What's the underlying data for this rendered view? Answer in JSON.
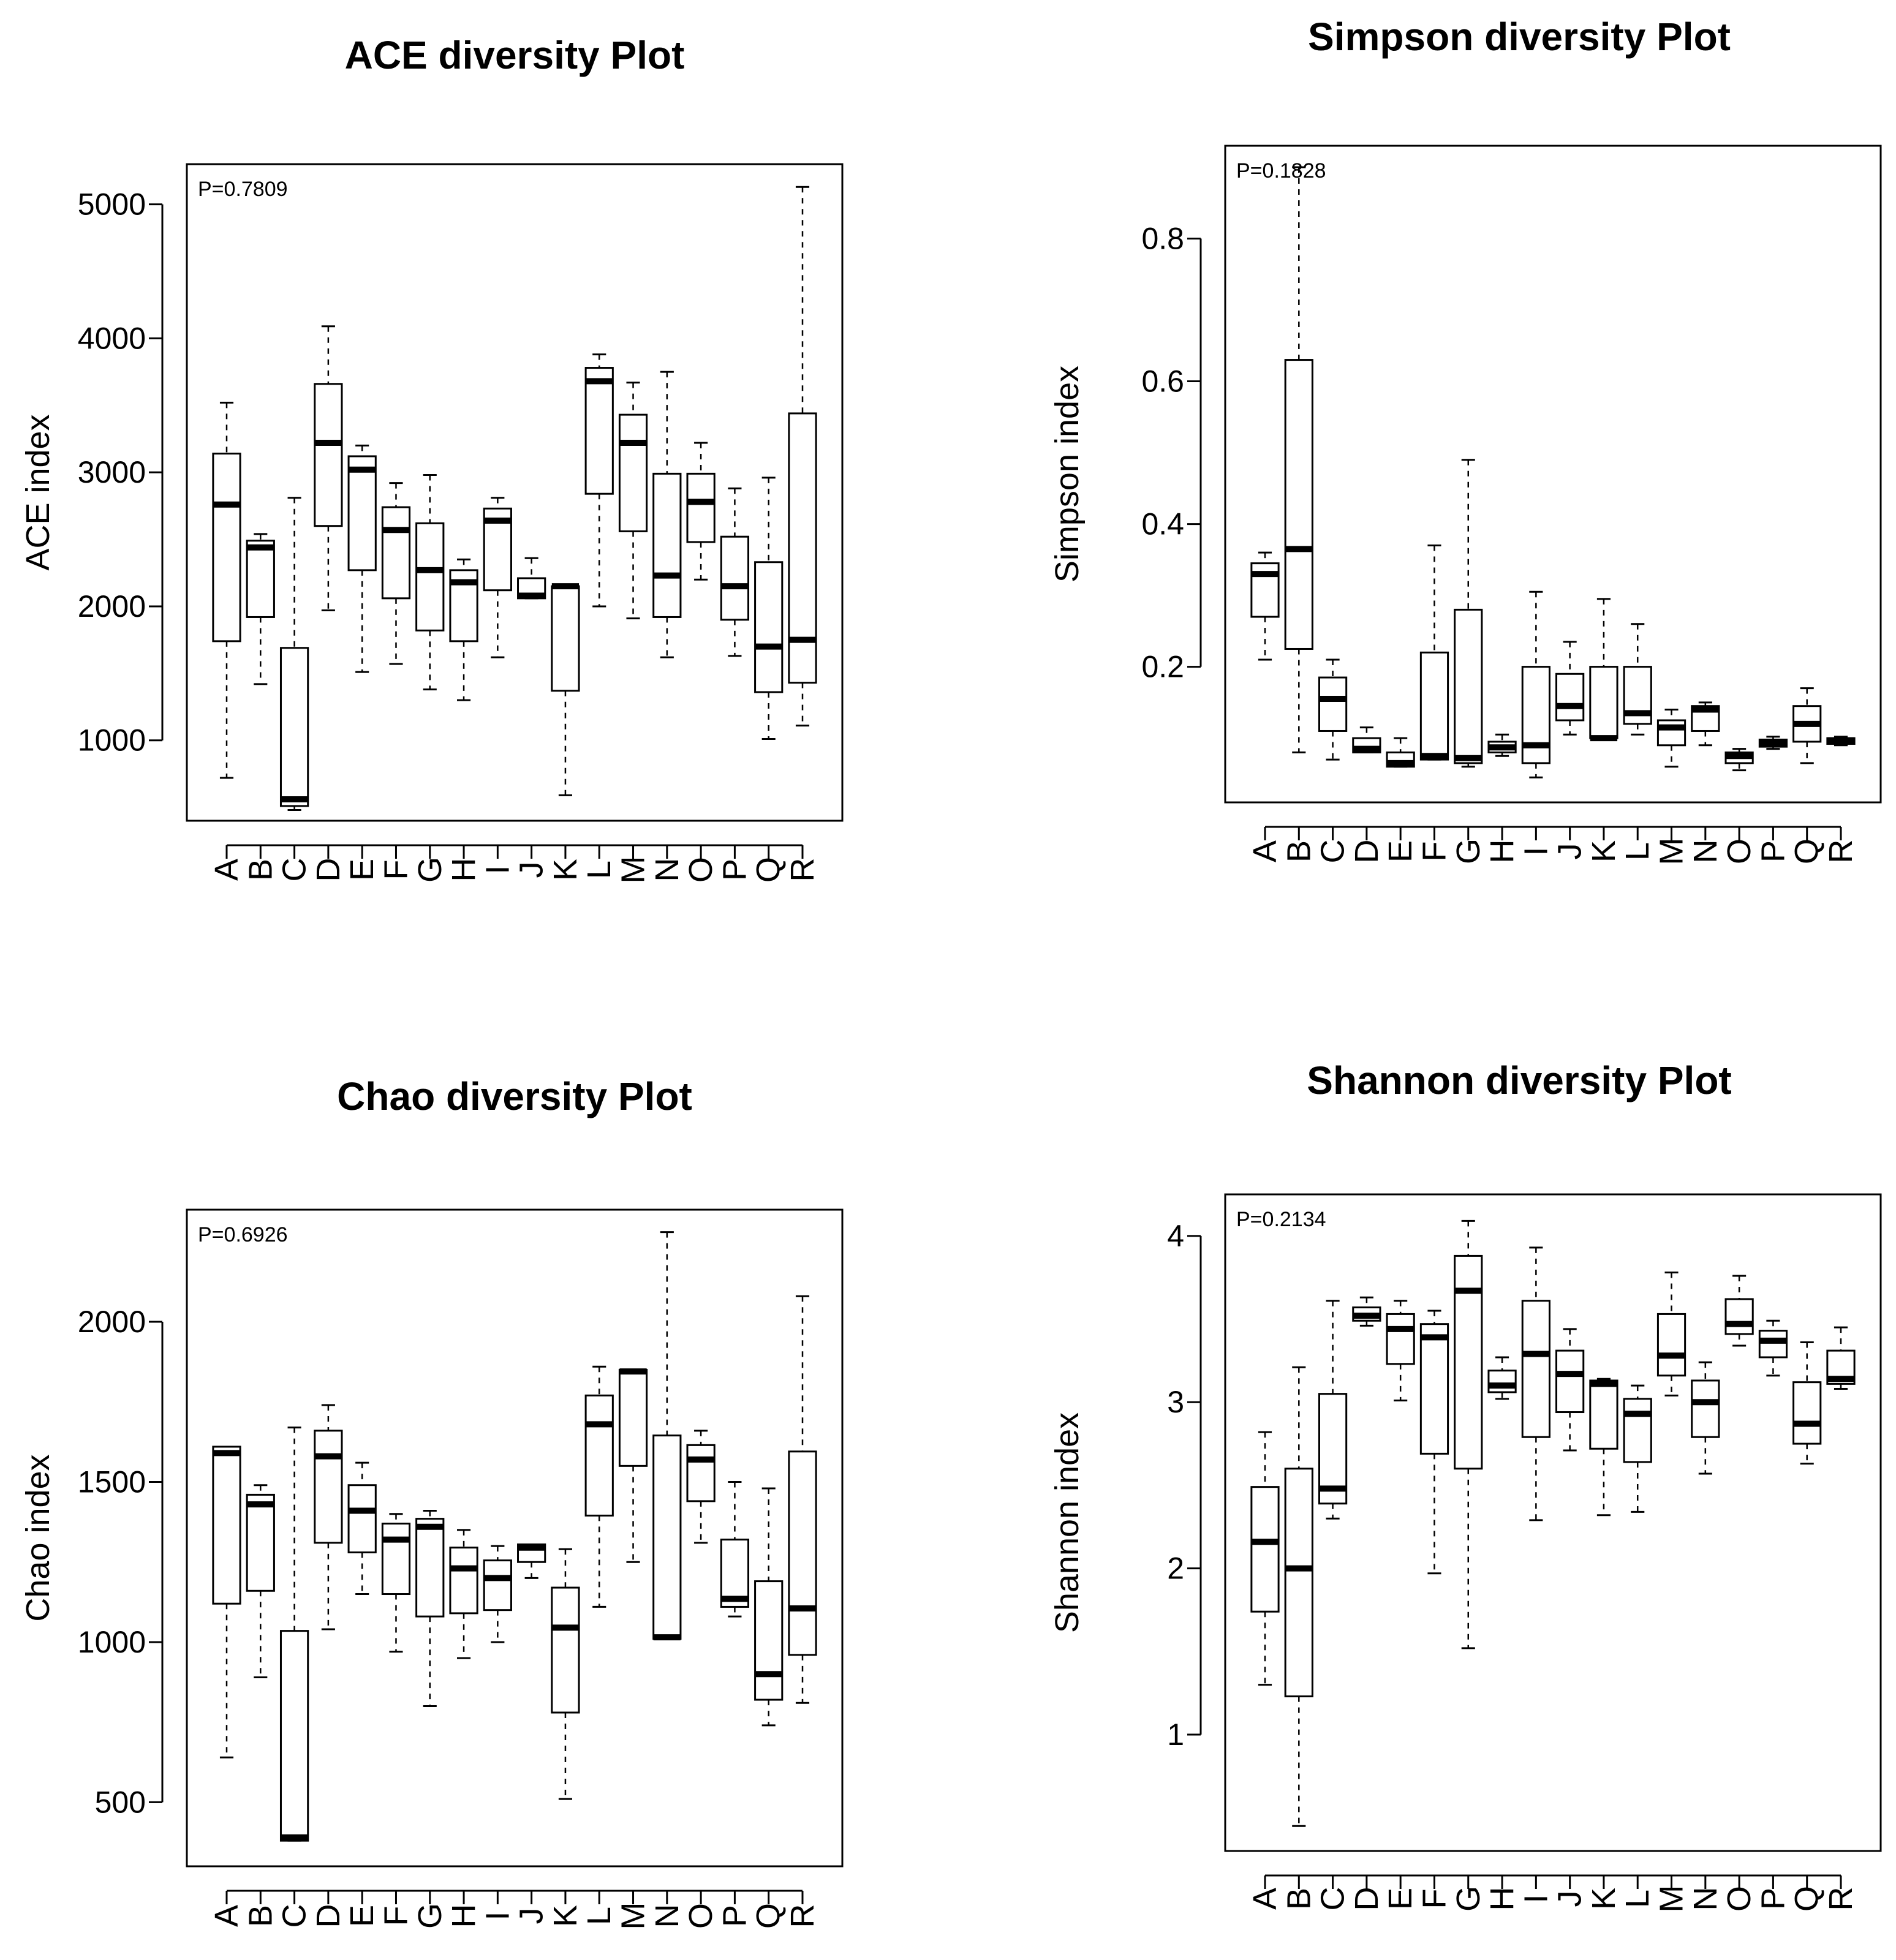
{
  "chart_data": [
    {
      "type": "boxplot",
      "title": "ACE diversity Plot",
      "ylabel": "ACE index",
      "annotation": "P=0.7809",
      "ylim": [
        400,
        5300
      ],
      "yticks": [
        1000,
        2000,
        3000,
        4000,
        5000
      ],
      "categories": [
        "A",
        "B",
        "C",
        "D",
        "E",
        "F",
        "G",
        "H",
        "I",
        "J",
        "K",
        "L",
        "M",
        "N",
        "O",
        "P",
        "Q",
        "R"
      ],
      "boxes": [
        {
          "min": 720,
          "q1": 1740,
          "median": 2760,
          "q3": 3140,
          "max": 3520
        },
        {
          "min": 1420,
          "q1": 1920,
          "median": 2440,
          "q3": 2490,
          "max": 2540
        },
        {
          "min": 480,
          "q1": 510,
          "median": 560,
          "q3": 1690,
          "max": 2810
        },
        {
          "min": 1970,
          "q1": 2600,
          "median": 3220,
          "q3": 3660,
          "max": 4090
        },
        {
          "min": 1510,
          "q1": 2270,
          "median": 3020,
          "q3": 3120,
          "max": 3200
        },
        {
          "min": 1570,
          "q1": 2060,
          "median": 2570,
          "q3": 2740,
          "max": 2920
        },
        {
          "min": 1380,
          "q1": 1820,
          "median": 2270,
          "q3": 2620,
          "max": 2980
        },
        {
          "min": 1300,
          "q1": 1740,
          "median": 2180,
          "q3": 2270,
          "max": 2350
        },
        {
          "min": 1620,
          "q1": 2120,
          "median": 2640,
          "q3": 2730,
          "max": 2810
        },
        {
          "min": 2060,
          "q1": 2060,
          "median": 2080,
          "q3": 2210,
          "max": 2360
        },
        {
          "min": 590,
          "q1": 1370,
          "median": 2150,
          "q3": 2150,
          "max": 2150
        },
        {
          "min": 2000,
          "q1": 2840,
          "median": 3680,
          "q3": 3780,
          "max": 3880
        },
        {
          "min": 1910,
          "q1": 2560,
          "median": 3220,
          "q3": 3430,
          "max": 3670
        },
        {
          "min": 1620,
          "q1": 1920,
          "median": 2230,
          "q3": 2990,
          "max": 3750
        },
        {
          "min": 2200,
          "q1": 2480,
          "median": 2780,
          "q3": 2990,
          "max": 3220
        },
        {
          "min": 1630,
          "q1": 1900,
          "median": 2150,
          "q3": 2520,
          "max": 2880
        },
        {
          "min": 1010,
          "q1": 1360,
          "median": 1700,
          "q3": 2330,
          "max": 2960
        },
        {
          "min": 1110,
          "q1": 1430,
          "median": 1750,
          "q3": 3440,
          "max": 5130
        }
      ]
    },
    {
      "type": "boxplot",
      "title": "Simpson diversity Plot",
      "ylabel": "Simpson index",
      "annotation": "P=0.1828",
      "ylim": [
        0.01,
        0.93
      ],
      "yticks": [
        0.2,
        0.4,
        0.6,
        0.8
      ],
      "categories": [
        "A",
        "B",
        "C",
        "D",
        "E",
        "F",
        "G",
        "H",
        "I",
        "J",
        "K",
        "L",
        "M",
        "N",
        "O",
        "P",
        "Q",
        "R"
      ],
      "boxes": [
        {
          "min": 0.21,
          "q1": 0.27,
          "median": 0.33,
          "q3": 0.345,
          "max": 0.36
        },
        {
          "min": 0.08,
          "q1": 0.225,
          "median": 0.365,
          "q3": 0.63,
          "max": 0.9
        },
        {
          "min": 0.07,
          "q1": 0.11,
          "median": 0.155,
          "q3": 0.185,
          "max": 0.21
        },
        {
          "min": 0.08,
          "q1": 0.08,
          "median": 0.085,
          "q3": 0.1,
          "max": 0.115
        },
        {
          "min": 0.06,
          "q1": 0.06,
          "median": 0.065,
          "q3": 0.08,
          "max": 0.1
        },
        {
          "min": 0.07,
          "q1": 0.07,
          "median": 0.075,
          "q3": 0.22,
          "max": 0.37
        },
        {
          "min": 0.06,
          "q1": 0.065,
          "median": 0.072,
          "q3": 0.28,
          "max": 0.49
        },
        {
          "min": 0.075,
          "q1": 0.08,
          "median": 0.087,
          "q3": 0.095,
          "max": 0.105
        },
        {
          "min": 0.045,
          "q1": 0.065,
          "median": 0.09,
          "q3": 0.2,
          "max": 0.305
        },
        {
          "min": 0.105,
          "q1": 0.125,
          "median": 0.145,
          "q3": 0.19,
          "max": 0.235
        },
        {
          "min": 0.1,
          "q1": 0.1,
          "median": 0.1,
          "q3": 0.2,
          "max": 0.295
        },
        {
          "min": 0.105,
          "q1": 0.12,
          "median": 0.135,
          "q3": 0.2,
          "max": 0.26
        },
        {
          "min": 0.06,
          "q1": 0.09,
          "median": 0.115,
          "q3": 0.125,
          "max": 0.14
        },
        {
          "min": 0.09,
          "q1": 0.11,
          "median": 0.14,
          "q3": 0.145,
          "max": 0.15
        },
        {
          "min": 0.055,
          "q1": 0.065,
          "median": 0.075,
          "q3": 0.08,
          "max": 0.085
        },
        {
          "min": 0.085,
          "q1": 0.088,
          "median": 0.093,
          "q3": 0.098,
          "max": 0.102
        },
        {
          "min": 0.065,
          "q1": 0.095,
          "median": 0.12,
          "q3": 0.145,
          "max": 0.17
        },
        {
          "min": 0.09,
          "q1": 0.092,
          "median": 0.097,
          "q3": 0.1,
          "max": 0.102
        }
      ]
    },
    {
      "type": "boxplot",
      "title": "Chao diversity Plot",
      "ylabel": "Chao index",
      "annotation": "P=0.6926",
      "ylim": [
        300,
        2350
      ],
      "yticks": [
        500,
        1000,
        1500,
        2000
      ],
      "categories": [
        "A",
        "B",
        "C",
        "D",
        "E",
        "F",
        "G",
        "H",
        "I",
        "J",
        "K",
        "L",
        "M",
        "N",
        "O",
        "P",
        "Q",
        "R"
      ],
      "boxes": [
        {
          "min": 640,
          "q1": 1120,
          "median": 1590,
          "q3": 1610,
          "max": 1610
        },
        {
          "min": 890,
          "q1": 1160,
          "median": 1430,
          "q3": 1460,
          "max": 1490
        },
        {
          "min": 380,
          "q1": 380,
          "median": 390,
          "q3": 1035,
          "max": 1670
        },
        {
          "min": 1040,
          "q1": 1310,
          "median": 1580,
          "q3": 1660,
          "max": 1740
        },
        {
          "min": 1150,
          "q1": 1280,
          "median": 1410,
          "q3": 1490,
          "max": 1560
        },
        {
          "min": 970,
          "q1": 1150,
          "median": 1320,
          "q3": 1370,
          "max": 1400
        },
        {
          "min": 800,
          "q1": 1080,
          "median": 1360,
          "q3": 1385,
          "max": 1410
        },
        {
          "min": 950,
          "q1": 1090,
          "median": 1230,
          "q3": 1295,
          "max": 1350
        },
        {
          "min": 1000,
          "q1": 1100,
          "median": 1200,
          "q3": 1255,
          "max": 1300
        },
        {
          "min": 1200,
          "q1": 1250,
          "median": 1295,
          "q3": 1305,
          "max": 1305
        },
        {
          "min": 510,
          "q1": 780,
          "median": 1045,
          "q3": 1170,
          "max": 1290
        },
        {
          "min": 1110,
          "q1": 1395,
          "median": 1680,
          "q3": 1770,
          "max": 1860
        },
        {
          "min": 1250,
          "q1": 1550,
          "median": 1845,
          "q3": 1850,
          "max": 1850
        },
        {
          "min": 1010,
          "q1": 1010,
          "median": 1015,
          "q3": 1645,
          "max": 2280
        },
        {
          "min": 1310,
          "q1": 1440,
          "median": 1570,
          "q3": 1615,
          "max": 1660
        },
        {
          "min": 1080,
          "q1": 1110,
          "median": 1135,
          "q3": 1320,
          "max": 1500
        },
        {
          "min": 740,
          "q1": 820,
          "median": 900,
          "q3": 1190,
          "max": 1480
        },
        {
          "min": 810,
          "q1": 960,
          "median": 1105,
          "q3": 1595,
          "max": 2080
        }
      ]
    },
    {
      "type": "boxplot",
      "title": "Shannon diversity Plot",
      "ylabel": "Shannon index",
      "annotation": "P=0.2134",
      "ylim": [
        0.3,
        4.25
      ],
      "yticks": [
        1,
        2,
        3,
        4
      ],
      "categories": [
        "A",
        "B",
        "C",
        "D",
        "E",
        "F",
        "G",
        "H",
        "I",
        "J",
        "K",
        "L",
        "M",
        "N",
        "O",
        "P",
        "Q",
        "R"
      ],
      "boxes": [
        {
          "min": 1.3,
          "q1": 1.74,
          "median": 2.16,
          "q3": 2.49,
          "max": 2.82
        },
        {
          "min": 0.45,
          "q1": 1.23,
          "median": 2.0,
          "q3": 2.6,
          "max": 3.21
        },
        {
          "min": 2.3,
          "q1": 2.39,
          "median": 2.48,
          "q3": 3.05,
          "max": 3.61
        },
        {
          "min": 3.46,
          "q1": 3.49,
          "median": 3.52,
          "q3": 3.57,
          "max": 3.63
        },
        {
          "min": 3.01,
          "q1": 3.23,
          "median": 3.44,
          "q3": 3.53,
          "max": 3.61
        },
        {
          "min": 1.97,
          "q1": 2.69,
          "median": 3.39,
          "q3": 3.47,
          "max": 3.55
        },
        {
          "min": 1.52,
          "q1": 2.6,
          "median": 3.67,
          "q3": 3.88,
          "max": 4.09
        },
        {
          "min": 3.02,
          "q1": 3.06,
          "median": 3.1,
          "q3": 3.19,
          "max": 3.27
        },
        {
          "min": 2.29,
          "q1": 2.79,
          "median": 3.29,
          "q3": 3.61,
          "max": 3.93
        },
        {
          "min": 2.71,
          "q1": 2.94,
          "median": 3.17,
          "q3": 3.31,
          "max": 3.44
        },
        {
          "min": 2.32,
          "q1": 2.72,
          "median": 3.11,
          "q3": 3.13,
          "max": 3.14
        },
        {
          "min": 2.34,
          "q1": 2.64,
          "median": 2.93,
          "q3": 3.02,
          "max": 3.1
        },
        {
          "min": 3.04,
          "q1": 3.16,
          "median": 3.28,
          "q3": 3.53,
          "max": 3.78
        },
        {
          "min": 2.57,
          "q1": 2.79,
          "median": 3.0,
          "q3": 3.13,
          "max": 3.24
        },
        {
          "min": 3.34,
          "q1": 3.41,
          "median": 3.47,
          "q3": 3.62,
          "max": 3.76
        },
        {
          "min": 3.16,
          "q1": 3.27,
          "median": 3.37,
          "q3": 3.43,
          "max": 3.49
        },
        {
          "min": 2.63,
          "q1": 2.75,
          "median": 2.87,
          "q3": 3.12,
          "max": 3.36
        },
        {
          "min": 3.08,
          "q1": 3.11,
          "median": 3.14,
          "q3": 3.31,
          "max": 3.45
        }
      ]
    }
  ]
}
